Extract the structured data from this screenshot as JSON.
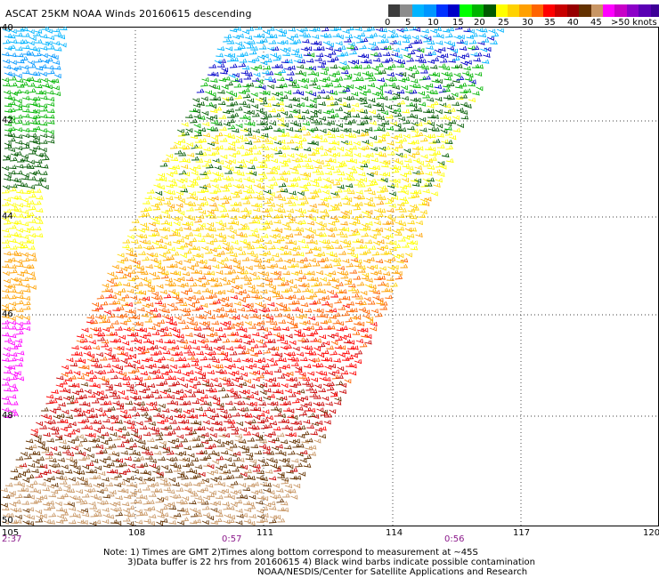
{
  "title": "ASCAT 25KM NOAA Winds 20160615 descending",
  "colorbar": {
    "labels": [
      "0",
      "5",
      "10",
      "15",
      "20",
      "25",
      "30",
      "35",
      "40",
      "45",
      ">50 knots"
    ],
    "colors": [
      "#3c3c3c",
      "#8c8c8c",
      "#00b4ff",
      "#0096ff",
      "#0032ff",
      "#0000c8",
      "#00ff00",
      "#00b400",
      "#005a00",
      "#ffff00",
      "#ffd200",
      "#ffa000",
      "#ff6400",
      "#ff0000",
      "#c80000",
      "#960000",
      "#643200",
      "#c89664",
      "#ff00ff",
      "#c800c8",
      "#8c00c8",
      "#5a00b4",
      "#3c0096"
    ]
  },
  "latitudes": [
    "40",
    "42",
    "44",
    "46",
    "48",
    "50"
  ],
  "longitudes": [
    "105",
    "108",
    "111",
    "114",
    "117",
    "120"
  ],
  "times": [
    "2:37",
    "0:57",
    "0:56"
  ],
  "notes": [
    "Note: 1) Times are GMT 2)Times along bottom correspond to measurement at ~45S",
    "3)Data buffer is 22 hrs from 20160615 4) Black wind barbs indicate possible contamination",
    "NOAA/NESDIS/Center for Satellite Applications and Research"
  ],
  "wind_zones": [
    {
      "color": "#00b4ff",
      "speed_knots": 10
    },
    {
      "color": "#0000c8",
      "speed_knots": 15
    },
    {
      "color": "#00b400",
      "speed_knots": 20
    },
    {
      "color": "#005a00",
      "speed_knots": 20
    },
    {
      "color": "#ffff00",
      "speed_knots": 22
    },
    {
      "color": "#ffd200",
      "speed_knots": 25
    },
    {
      "color": "#ffa000",
      "speed_knots": 27
    },
    {
      "color": "#ff6400",
      "speed_knots": 30
    },
    {
      "color": "#ff0000",
      "speed_knots": 33
    },
    {
      "color": "#c80000",
      "speed_knots": 35
    },
    {
      "color": "#643200",
      "speed_knots": 38
    },
    {
      "color": "#c89664",
      "speed_knots": 40
    }
  ]
}
